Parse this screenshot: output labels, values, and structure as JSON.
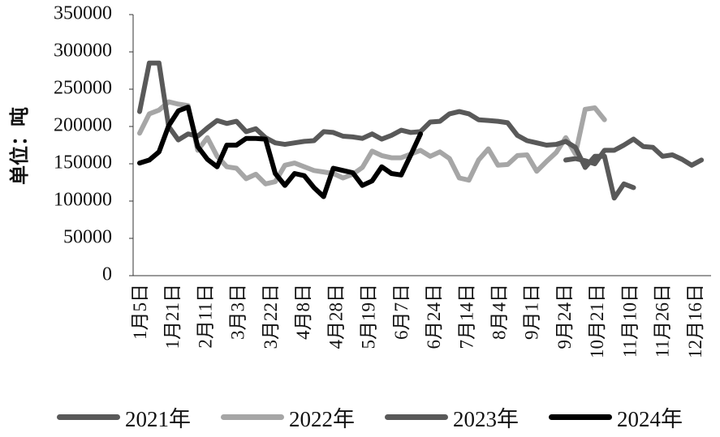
{
  "chart_data": {
    "type": "line",
    "ylabel": "单位：吨",
    "ylim": [
      0,
      350000
    ],
    "yticks": [
      "350000",
      "300000",
      "250000",
      "200000",
      "150000",
      "100000",
      "50000",
      "0"
    ],
    "xtick_labels": [
      "1月5日",
      "1月21日",
      "2月11日",
      "3月3日",
      "3月22日",
      "4月8日",
      "4月28日",
      "5月19日",
      "6月7日",
      "6月24日",
      "7月14日",
      "8月4日",
      "9月1日",
      "9月24日",
      "10月21日",
      "11月10日",
      "11月26日",
      "12月16日"
    ],
    "grid": false,
    "legend_position": "bottom",
    "series": [
      {
        "name": "2021年",
        "color": "#595959",
        "values": [
          null,
          null,
          null,
          null,
          null,
          null,
          null,
          null,
          null,
          null,
          null,
          null,
          null,
          null,
          null,
          null,
          null,
          null,
          null,
          null,
          null,
          null,
          null,
          null,
          null,
          null,
          null,
          null,
          null,
          null,
          null,
          null,
          null,
          null,
          null,
          null,
          null,
          null,
          null,
          null,
          null,
          null,
          null,
          null,
          155000,
          157000,
          154000,
          150000,
          168000,
          168000,
          175000,
          183000,
          173000,
          172000,
          160000,
          162000,
          156000,
          148000,
          155000
        ]
      },
      {
        "name": "2022年",
        "color": "#a6a6a6",
        "values": [
          191000,
          217000,
          222000,
          233000,
          230000,
          228000,
          168000,
          185000,
          160000,
          146000,
          144000,
          130000,
          136000,
          123000,
          126000,
          148000,
          151000,
          146000,
          141000,
          139000,
          137000,
          131000,
          136000,
          145000,
          167000,
          161000,
          158000,
          158000,
          163000,
          168000,
          160000,
          166000,
          157000,
          131000,
          128000,
          155000,
          170000,
          148000,
          149000,
          161000,
          162000,
          140000,
          153000,
          165000,
          185000,
          163000,
          223000,
          225000,
          209000
        ]
      },
      {
        "name": "2023年",
        "color": "#595959",
        "values": [
          220000,
          285000,
          285000,
          200000,
          182000,
          190000,
          187000,
          198000,
          208000,
          204000,
          207000,
          193000,
          197000,
          185000,
          178000,
          176000,
          178000,
          180000,
          181000,
          193000,
          192000,
          187000,
          186000,
          184000,
          190000,
          183000,
          188000,
          195000,
          192000,
          193000,
          206000,
          207000,
          217000,
          220000,
          217000,
          209000,
          208000,
          207000,
          205000,
          188000,
          181000,
          178000,
          175000,
          176000,
          180000,
          172000,
          145000,
          160000,
          160000,
          104000,
          123000,
          118000
        ]
      },
      {
        "name": "2024年",
        "color": "#000000",
        "values": [
          151000,
          155000,
          166000,
          201000,
          221000,
          226000,
          173000,
          156000,
          146000,
          175000,
          175000,
          184000,
          184000,
          183000,
          137000,
          121000,
          137000,
          134000,
          118000,
          106000,
          144000,
          141000,
          138000,
          121000,
          127000,
          146000,
          137000,
          135000,
          162000,
          190000
        ]
      }
    ]
  }
}
